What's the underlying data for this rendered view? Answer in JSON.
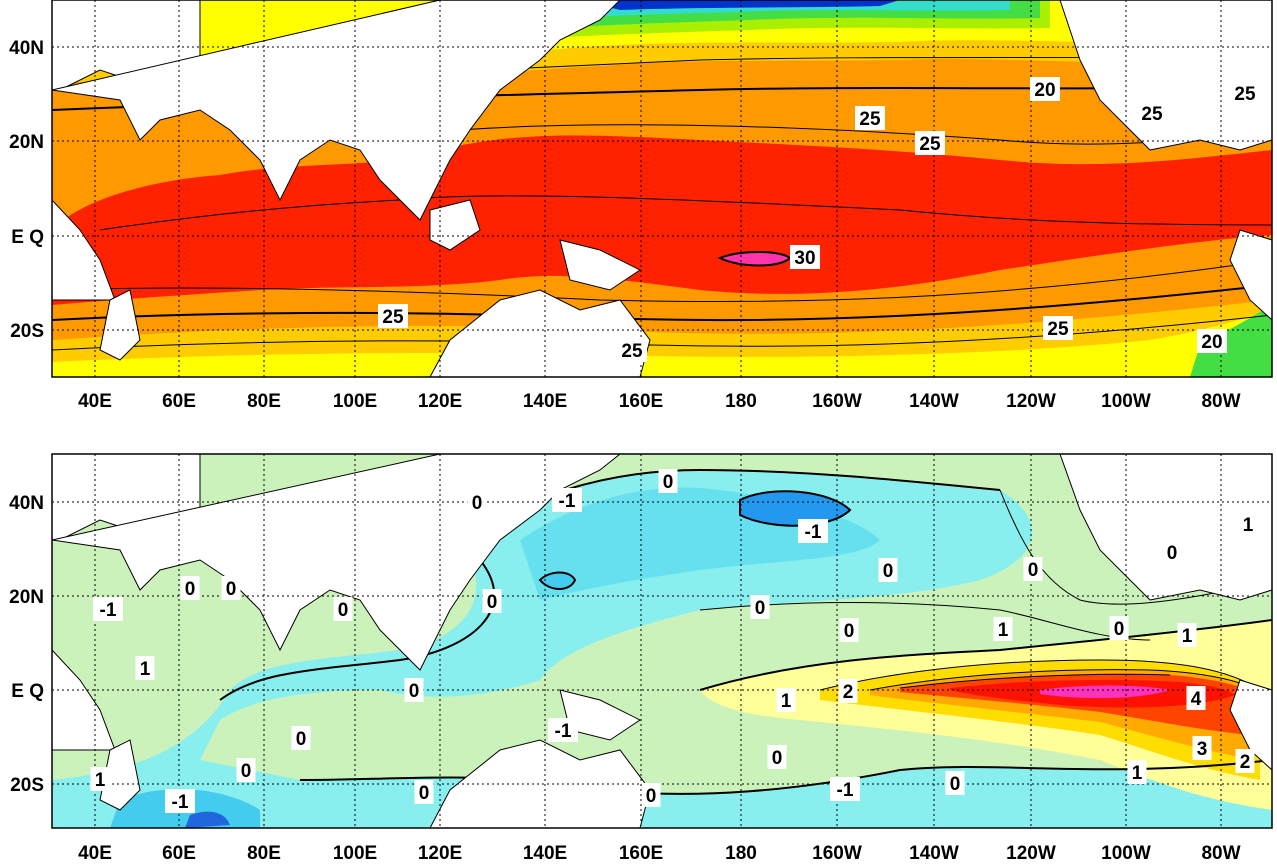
{
  "maps": [
    {
      "id": "top",
      "description_kind": "filled-contour sea surface temperature field",
      "y_tick_labels": [
        "40N",
        "20N",
        "E Q",
        "20S"
      ],
      "x_tick_labels": [
        "40E",
        "60E",
        "80E",
        "100E",
        "120E",
        "140E",
        "160E",
        "180",
        "160W",
        "140W",
        "120W",
        "100W",
        "80W"
      ],
      "contour_labels": [
        "20",
        "25",
        "25",
        "25",
        "25",
        "30",
        "25",
        "25",
        "25",
        "20"
      ]
    },
    {
      "id": "bottom",
      "description_kind": "filled-contour anomaly field",
      "y_tick_labels": [
        "40N",
        "20N",
        "E Q",
        "20S"
      ],
      "x_tick_labels": [
        "40E",
        "60E",
        "80E",
        "100E",
        "120E",
        "140E",
        "160E",
        "180",
        "160W",
        "140W",
        "120W",
        "100W",
        "80W"
      ],
      "contour_labels": [
        "0",
        "-1",
        "0",
        "-1",
        "0",
        "1",
        "-1",
        "0",
        "0",
        "0",
        "0",
        "0",
        "0",
        "0",
        "0",
        "1",
        "0",
        "1",
        "1",
        "0",
        "1",
        "2",
        "4",
        "0",
        "-1",
        "0",
        "1",
        "0",
        "0",
        "0",
        "0",
        "-1",
        "0",
        "3",
        "1",
        "2",
        "-1"
      ]
    }
  ],
  "colors": {
    "land": "#ffffff",
    "grid": "#000000",
    "sst_scale": [
      "#0033cc",
      "#00aaff",
      "#33ddcc",
      "#44dd44",
      "#aaee00",
      "#ffff00",
      "#ffcc00",
      "#ff9900",
      "#ff6600",
      "#ff2200",
      "#ff33aa"
    ],
    "anom_scale": [
      "#2255ee",
      "#44aaff",
      "#66eeee",
      "#bbffee",
      "#ccf2bb",
      "#ccee99",
      "#ffff99",
      "#ffdd00",
      "#ffaa00",
      "#ff4400",
      "#ff1100",
      "#ff33bb"
    ]
  }
}
